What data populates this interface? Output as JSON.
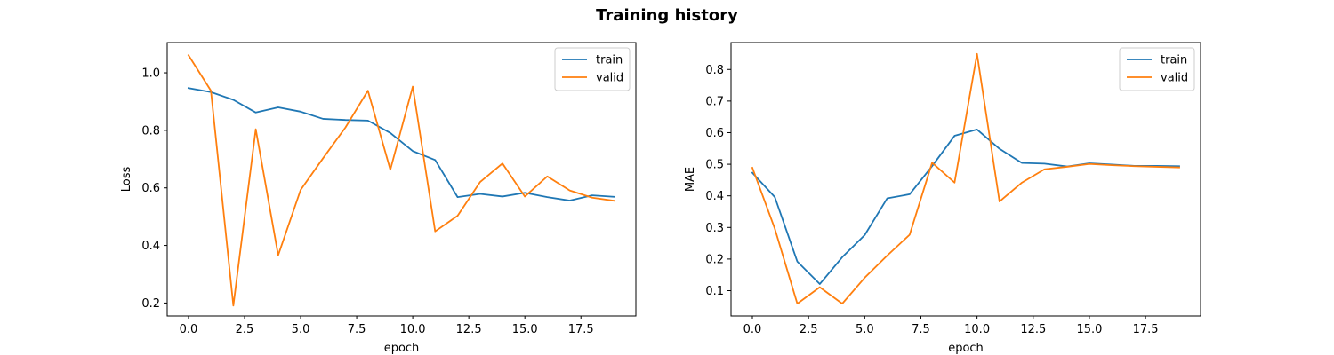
{
  "figure": {
    "title": "Training history"
  },
  "chart_data": [
    {
      "type": "line",
      "title": "",
      "xlabel": "epoch",
      "ylabel": "Loss",
      "xlim": [
        -0.95,
        19.95
      ],
      "ylim": [
        0.155,
        1.105
      ],
      "xticks": [
        0.0,
        2.5,
        5.0,
        7.5,
        10.0,
        12.5,
        15.0,
        17.5
      ],
      "xtick_labels": [
        "0.0",
        "2.5",
        "5.0",
        "7.5",
        "10.0",
        "12.5",
        "15.0",
        "17.5"
      ],
      "yticks": [
        0.2,
        0.4,
        0.6,
        0.8,
        1.0
      ],
      "ytick_labels": [
        "0.2",
        "0.4",
        "0.6",
        "0.8",
        "1.0"
      ],
      "legend_position": "top-right",
      "grid": false,
      "x": [
        0,
        1,
        2,
        3,
        4,
        5,
        6,
        7,
        8,
        9,
        10,
        11,
        12,
        13,
        14,
        15,
        16,
        17,
        18,
        19
      ],
      "series": [
        {
          "name": "train",
          "color": "#1f77b4",
          "values": [
            0.947,
            0.933,
            0.906,
            0.862,
            0.88,
            0.865,
            0.84,
            0.836,
            0.834,
            0.791,
            0.728,
            0.697,
            0.568,
            0.579,
            0.57,
            0.583,
            0.568,
            0.556,
            0.574,
            0.569
          ]
        },
        {
          "name": "valid",
          "color": "#ff7f0e",
          "values": [
            1.061,
            0.938,
            0.191,
            0.804,
            0.366,
            0.593,
            0.703,
            0.81,
            0.938,
            0.663,
            0.952,
            0.449,
            0.503,
            0.62,
            0.685,
            0.57,
            0.64,
            0.591,
            0.566,
            0.555
          ]
        }
      ]
    },
    {
      "type": "line",
      "title": "",
      "xlabel": "epoch",
      "ylabel": "MAE",
      "xlim": [
        -0.95,
        19.95
      ],
      "ylim": [
        0.02,
        0.885
      ],
      "xticks": [
        0.0,
        2.5,
        5.0,
        7.5,
        10.0,
        12.5,
        15.0,
        17.5
      ],
      "xtick_labels": [
        "0.0",
        "2.5",
        "5.0",
        "7.5",
        "10.0",
        "12.5",
        "15.0",
        "17.5"
      ],
      "yticks": [
        0.1,
        0.2,
        0.3,
        0.4,
        0.5,
        0.6,
        0.7,
        0.8
      ],
      "ytick_labels": [
        "0.1",
        "0.2",
        "0.3",
        "0.4",
        "0.5",
        "0.6",
        "0.7",
        "0.8"
      ],
      "legend_position": "top-right",
      "grid": false,
      "x": [
        0,
        1,
        2,
        3,
        4,
        5,
        6,
        7,
        8,
        9,
        10,
        11,
        12,
        13,
        14,
        15,
        16,
        17,
        18,
        19
      ],
      "series": [
        {
          "name": "train",
          "color": "#1f77b4",
          "values": [
            0.473,
            0.396,
            0.192,
            0.121,
            0.206,
            0.276,
            0.392,
            0.405,
            0.494,
            0.59,
            0.61,
            0.549,
            0.504,
            0.502,
            0.493,
            0.503,
            0.499,
            0.495,
            0.495,
            0.494
          ]
        },
        {
          "name": "valid",
          "color": "#ff7f0e",
          "values": [
            0.489,
            0.296,
            0.059,
            0.111,
            0.059,
            0.141,
            0.211,
            0.277,
            0.505,
            0.442,
            0.849,
            0.382,
            0.442,
            0.484,
            0.492,
            0.501,
            0.497,
            0.494,
            0.492,
            0.49
          ]
        }
      ]
    }
  ]
}
